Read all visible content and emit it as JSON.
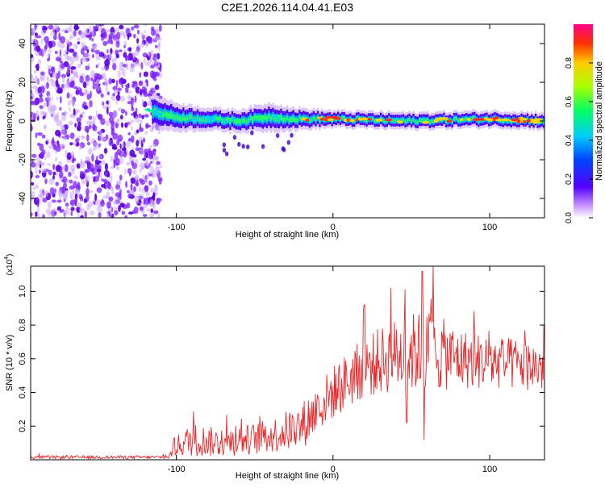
{
  "title": "C2E1.2026.114.04.41.E03",
  "chart_data": [
    {
      "type": "heatmap",
      "name": "spectrogram",
      "xlabel": "Height of straight line (km)",
      "ylabel": "Frequency (Hz)",
      "xlim": [
        -193,
        135
      ],
      "ylim": [
        -50,
        50
      ],
      "x_ticks": [
        -100,
        0,
        100
      ],
      "x_tick_labels": [
        "-100",
        "0",
        "100"
      ],
      "y_ticks": [
        -40,
        -20,
        0,
        20,
        40
      ],
      "y_tick_labels": [
        "-40",
        "-20",
        "0",
        "20",
        "40"
      ],
      "noise_region_x": [
        -193,
        -110
      ],
      "signal_band": [
        {
          "x": -115,
          "center": 5,
          "halfwidth": 6
        },
        {
          "x": -100,
          "center": 2,
          "halfwidth": 5
        },
        {
          "x": -80,
          "center": 1,
          "halfwidth": 4
        },
        {
          "x": -60,
          "center": 0,
          "halfwidth": 4
        },
        {
          "x": -40,
          "center": 2,
          "halfwidth": 5
        },
        {
          "x": -25,
          "center": 1,
          "halfwidth": 4
        },
        {
          "x": 0,
          "center": 1,
          "halfwidth": 3
        },
        {
          "x": 50,
          "center": 0,
          "halfwidth": 3
        },
        {
          "x": 100,
          "center": 1,
          "halfwidth": 3
        },
        {
          "x": 135,
          "center": 0,
          "halfwidth": 3
        }
      ],
      "colorbar": {
        "label": "Normalized spectral amplitude",
        "range": [
          0,
          1
        ],
        "ticks": [
          0.0,
          0.2,
          0.4,
          0.6,
          0.8
        ],
        "tick_labels": [
          "0.0",
          "0.2",
          "0.4",
          "0.6",
          "0.8"
        ]
      }
    },
    {
      "type": "line",
      "name": "snr",
      "xlabel": "Height of straight line (km)",
      "ylabel": "SNR (10 * v/v)",
      "y_scale_label": "(x10",
      "y_scale_exp": "4",
      "xlim": [
        -193,
        135
      ],
      "ylim": [
        0,
        1.15
      ],
      "x_ticks": [
        -100,
        0,
        100
      ],
      "x_tick_labels": [
        "-100",
        "0",
        "100"
      ],
      "y_ticks": [
        0.2,
        0.4,
        0.6,
        0.8,
        1.0
      ],
      "y_tick_labels": [
        "0.2",
        "0.4",
        "0.6",
        "0.8",
        "1.0"
      ],
      "color": "#e8282b",
      "envelope": [
        {
          "x": -193,
          "mean": 0.015,
          "amp": 0.01
        },
        {
          "x": -105,
          "mean": 0.015,
          "amp": 0.01
        },
        {
          "x": -100,
          "mean": 0.08,
          "amp": 0.06
        },
        {
          "x": -90,
          "mean": 0.12,
          "amp": 0.1
        },
        {
          "x": -70,
          "mean": 0.1,
          "amp": 0.08
        },
        {
          "x": -40,
          "mean": 0.14,
          "amp": 0.1
        },
        {
          "x": -20,
          "mean": 0.2,
          "amp": 0.14
        },
        {
          "x": 0,
          "mean": 0.4,
          "amp": 0.16
        },
        {
          "x": 20,
          "mean": 0.55,
          "amp": 0.18
        },
        {
          "x": 40,
          "mean": 0.62,
          "amp": 0.22
        },
        {
          "x": 60,
          "mean": 0.65,
          "amp": 0.25
        },
        {
          "x": 80,
          "mean": 0.6,
          "amp": 0.18
        },
        {
          "x": 100,
          "mean": 0.58,
          "amp": 0.16
        },
        {
          "x": 135,
          "mean": 0.55,
          "amp": 0.15
        }
      ],
      "peaks": [
        {
          "x": 37,
          "y": 1.02
        },
        {
          "x": 57,
          "y": 1.12
        },
        {
          "x": 64,
          "y": 1.15
        },
        {
          "x": 20,
          "y": 0.92
        },
        {
          "x": 90,
          "y": 0.88
        }
      ],
      "dips": [
        {
          "x": 58,
          "y": 0.12
        },
        {
          "x": 47,
          "y": 0.22
        }
      ]
    }
  ]
}
